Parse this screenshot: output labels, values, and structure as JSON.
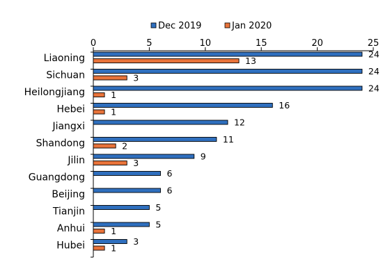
{
  "chart_data": {
    "type": "bar",
    "orientation": "horizontal",
    "categories": [
      "Liaoning",
      "Sichuan",
      "Heilongjiang",
      "Hebei",
      "Jiangxi",
      "Shandong",
      "Jilin",
      "Guangdong",
      "Beijing",
      "Tianjin",
      "Anhui",
      "Hubei"
    ],
    "series": [
      {
        "name": "Dec 2019",
        "color": "#2f6fbe",
        "values": [
          24,
          24,
          24,
          16,
          12,
          11,
          9,
          6,
          6,
          5,
          5,
          3
        ]
      },
      {
        "name": "Jan 2020",
        "color": "#e8733a",
        "values": [
          13,
          3,
          1,
          1,
          null,
          2,
          3,
          null,
          null,
          null,
          1,
          1
        ]
      }
    ],
    "xlim": [
      0,
      25
    ],
    "xticks": [
      0,
      5,
      10,
      15,
      20,
      25
    ],
    "x_axis_position": "top",
    "legend_position": "top",
    "data_labels": true,
    "grid": false
  }
}
